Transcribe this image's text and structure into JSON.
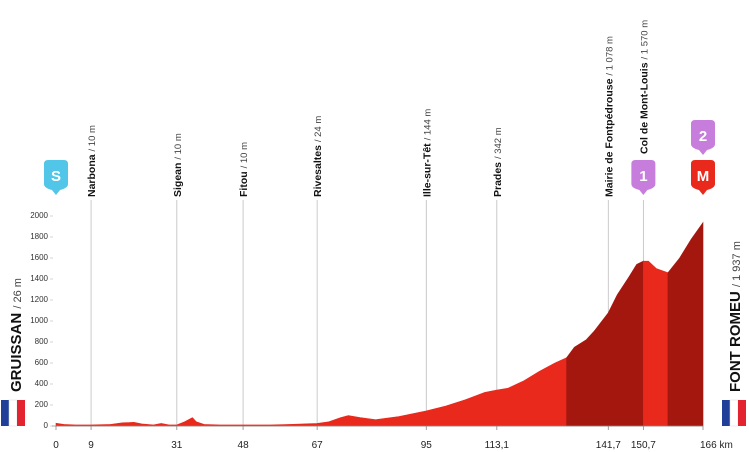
{
  "chart_data": {
    "type": "area",
    "x": [
      0,
      2,
      5,
      9,
      14,
      17,
      20,
      22,
      25,
      27,
      29,
      31,
      33,
      35,
      36,
      38,
      42,
      48,
      55,
      60,
      67,
      70,
      73,
      75,
      78,
      82,
      88,
      95,
      100,
      105,
      110,
      113.1,
      116,
      120,
      124,
      128,
      131,
      133,
      136,
      138,
      141.7,
      144,
      147,
      149,
      150.7,
      152,
      154,
      157,
      160,
      163,
      166
    ],
    "values": [
      26,
      15,
      10,
      10,
      15,
      30,
      35,
      20,
      10,
      25,
      10,
      10,
      40,
      80,
      40,
      15,
      10,
      10,
      10,
      15,
      24,
      40,
      80,
      100,
      80,
      60,
      90,
      144,
      190,
      250,
      320,
      342,
      360,
      430,
      520,
      600,
      650,
      750,
      820,
      900,
      1078,
      1250,
      1420,
      1540,
      1570,
      1570,
      1500,
      1460,
      1600,
      1780,
      1937
    ],
    "segments": [
      {
        "from": 0,
        "to": 131,
        "color": "#e8291c"
      },
      {
        "from": 131,
        "to": 150.7,
        "color": "#a3170f"
      },
      {
        "from": 150.7,
        "to": 157,
        "color": "#e8291c"
      },
      {
        "from": 157,
        "to": 166,
        "color": "#a3170f"
      }
    ],
    "xlim": [
      0,
      166
    ],
    "ylim": [
      0,
      2000
    ],
    "yticks": [
      0,
      200,
      400,
      600,
      800,
      1000,
      1200,
      1400,
      1600,
      1800,
      2000
    ],
    "xticks": [
      0,
      9,
      31,
      48,
      67,
      95,
      {
        "value": 113.1,
        "label": "113,1"
      },
      {
        "value": 141.7,
        "label": "141,7"
      },
      {
        "value": 150.7,
        "label": "150,7"
      },
      {
        "value": 166,
        "label": "166 km"
      }
    ],
    "start": {
      "name": "GRUISSAN",
      "alt": "/ 26 m"
    },
    "finish": {
      "name": "FONT ROMEU",
      "alt": "/ 1 937 m"
    },
    "waypoints": [
      {
        "x": 9,
        "name": "Narbona",
        "alt": "/ 10 m"
      },
      {
        "x": 31,
        "name": "Sigean",
        "alt": "/ 10 m"
      },
      {
        "x": 48,
        "name": "Fitou",
        "alt": "/ 10 m"
      },
      {
        "x": 67,
        "name": "Rivesaltes",
        "alt": "/ 24 m"
      },
      {
        "x": 95,
        "name": "Ille-sur-Têt",
        "alt": "/ 144 m"
      },
      {
        "x": 113.1,
        "name": "Prades",
        "alt": "/ 342 m"
      },
      {
        "x": 141.7,
        "name": "Mairie de Fontpédrouse",
        "alt": "/ 1 078 m"
      },
      {
        "x": 150.7,
        "name": "Col de Mont-Louis",
        "alt": "/ 1 570 m"
      }
    ],
    "markers": [
      {
        "x": 0,
        "label": "S",
        "color": "#52c6e8"
      },
      {
        "x": 150.7,
        "label": "1",
        "color": "#c77ddb"
      },
      {
        "x": 166,
        "label": "M",
        "color": "#e8291c"
      },
      {
        "x": 166,
        "label": "2",
        "color": "#c77ddb"
      }
    ]
  }
}
